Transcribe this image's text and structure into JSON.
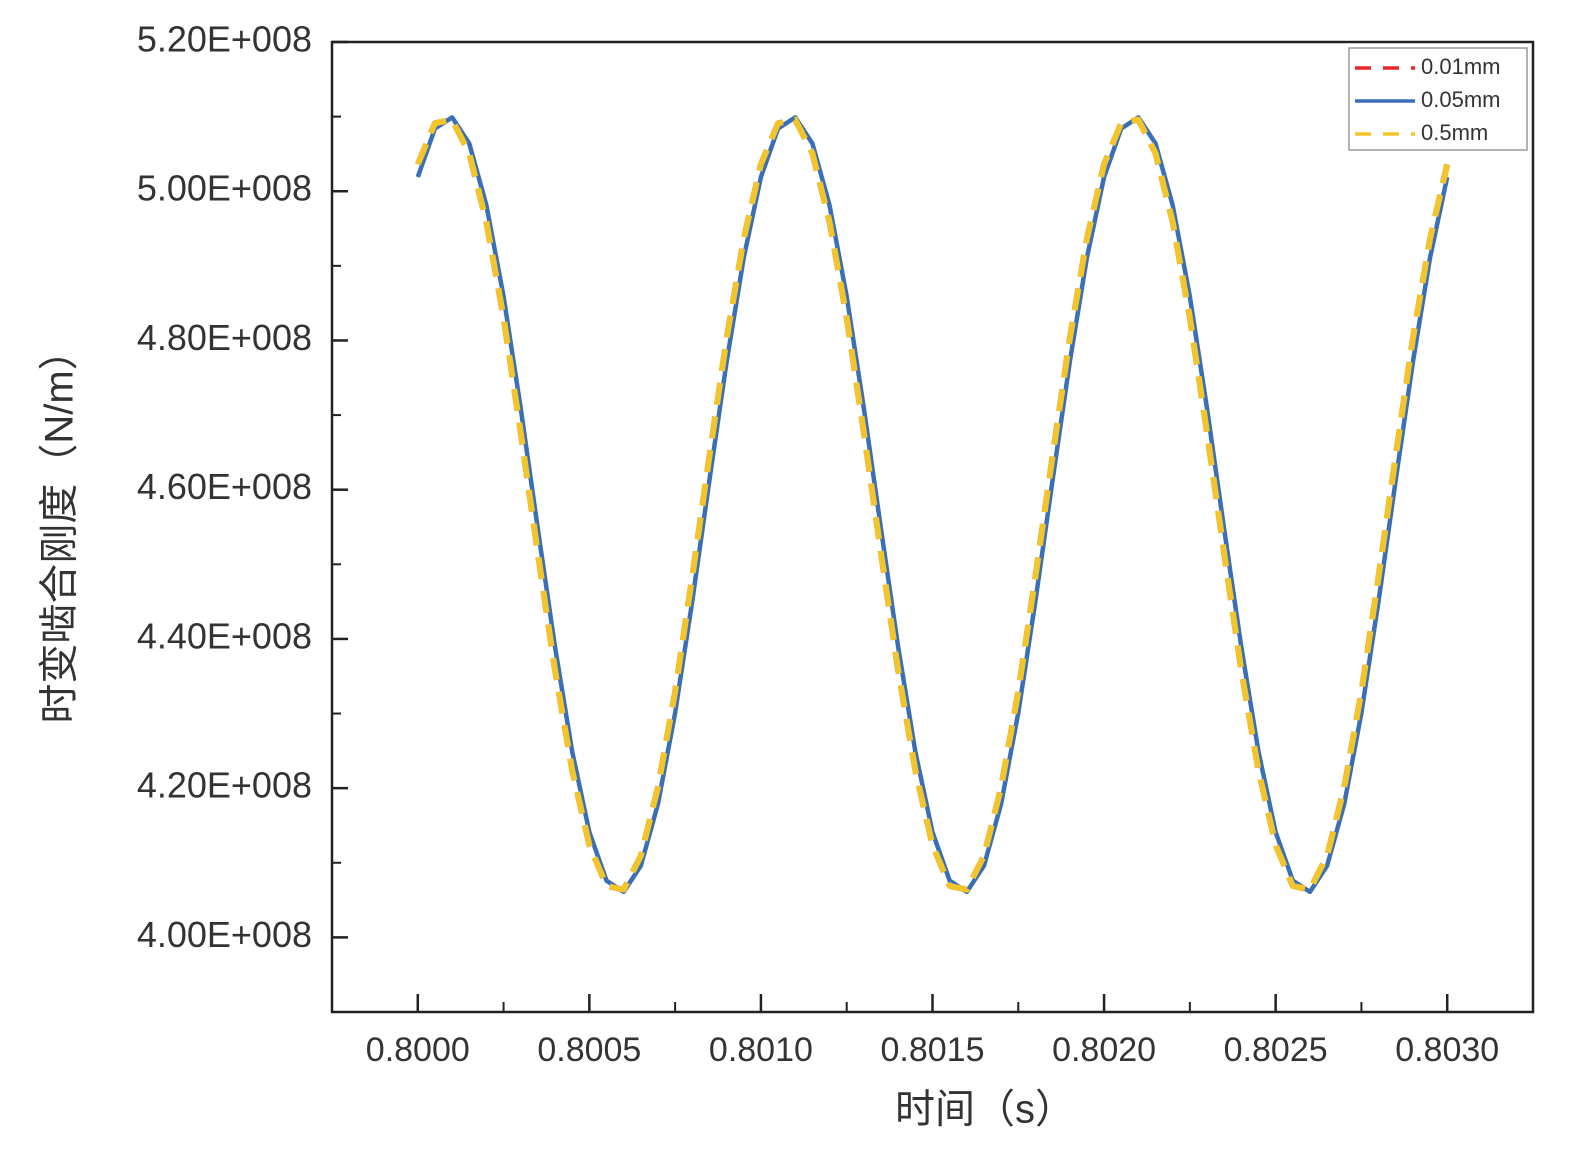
{
  "chart_data": {
    "type": "line",
    "x_label": "时间（s）",
    "y_label": "时变啮合刚度（N/m）",
    "x": [
      0.8,
      0.80005,
      0.8001,
      0.80015,
      0.8002,
      0.80025,
      0.8003,
      0.80035,
      0.8004,
      0.80045,
      0.8005,
      0.80055,
      0.8006,
      0.80065,
      0.8007,
      0.80075,
      0.8008,
      0.80085,
      0.8009,
      0.80095,
      0.801,
      0.80105,
      0.8011,
      0.80115,
      0.8012,
      0.80125,
      0.8013,
      0.80135,
      0.8014,
      0.80145,
      0.8015,
      0.80155,
      0.8016,
      0.80165,
      0.8017,
      0.80175,
      0.8018,
      0.80185,
      0.8019,
      0.80195,
      0.802,
      0.80205,
      0.8021,
      0.80215,
      0.8022,
      0.80225,
      0.8023,
      0.80235,
      0.8024,
      0.80245,
      0.8025,
      0.80255,
      0.8026,
      0.80265,
      0.8027,
      0.80275,
      0.8028,
      0.80285,
      0.8029,
      0.80295,
      0.803
    ],
    "series": [
      {
        "name": "0.01mm",
        "color": "#e8262a",
        "dash": true,
        "values": [
          503600000.0,
          509100000.0,
          509600000.0,
          505100000.0,
          495900000.0,
          483100000.0,
          467700000.0,
          451500000.0,
          435800000.0,
          422400000.0,
          412400000.0,
          406900000.0,
          406400000.0,
          410900000.0,
          420100000.0,
          432900000.0,
          448300000.0,
          464500000.0,
          480200000.0,
          493600000.0,
          503600000.0,
          509100000.0,
          509600000.0,
          505100000.0,
          495900000.0,
          483100000.0,
          467700000.0,
          451500000.0,
          435800000.0,
          422400000.0,
          412400000.0,
          406900000.0,
          406400000.0,
          410900000.0,
          420100000.0,
          432900000.0,
          448300000.0,
          464500000.0,
          480200000.0,
          493600000.0,
          503600000.0,
          509100000.0,
          509600000.0,
          505100000.0,
          495900000.0,
          483100000.0,
          467700000.0,
          451500000.0,
          435800000.0,
          422400000.0,
          412400000.0,
          406900000.0,
          406400000.0,
          410900000.0,
          420100000.0,
          432900000.0,
          448300000.0,
          464500000.0,
          480200000.0,
          493600000.0,
          503600000.0
        ]
      },
      {
        "name": "0.05mm",
        "color": "#3a6fb5",
        "dash": false,
        "values": [
          501900000.0,
          508400000.0,
          509900000.0,
          506400000.0,
          498100000.0,
          485900000.0,
          470900000.0,
          454700000.0,
          438900000.0,
          424900000.0,
          414100000.0,
          407600000.0,
          406100000.0,
          409600000.0,
          417900000.0,
          430100000.0,
          445100000.0,
          461300000.0,
          477100000.0,
          491100000.0,
          501900000.0,
          508400000.0,
          509900000.0,
          506400000.0,
          498100000.0,
          485900000.0,
          470900000.0,
          454700000.0,
          438900000.0,
          424900000.0,
          414100000.0,
          407600000.0,
          406100000.0,
          409600000.0,
          417900000.0,
          430100000.0,
          445100000.0,
          461300000.0,
          477100000.0,
          491100000.0,
          501900000.0,
          508400000.0,
          509900000.0,
          506400000.0,
          498100000.0,
          485900000.0,
          470900000.0,
          454700000.0,
          438900000.0,
          424900000.0,
          414100000.0,
          407600000.0,
          406100000.0,
          409600000.0,
          417900000.0,
          430100000.0,
          445100000.0,
          461300000.0,
          477100000.0,
          491100000.0,
          501900000.0
        ]
      },
      {
        "name": "0.5mm",
        "color": "#f2c52a",
        "dash": true,
        "values": [
          503600000.0,
          509100000.0,
          509600000.0,
          505100000.0,
          495900000.0,
          483100000.0,
          467700000.0,
          451500000.0,
          435800000.0,
          422400000.0,
          412400000.0,
          406900000.0,
          406400000.0,
          410900000.0,
          420100000.0,
          432900000.0,
          448300000.0,
          464500000.0,
          480200000.0,
          493600000.0,
          503600000.0,
          509100000.0,
          509600000.0,
          505100000.0,
          495900000.0,
          483100000.0,
          467700000.0,
          451500000.0,
          435800000.0,
          422400000.0,
          412400000.0,
          406900000.0,
          406400000.0,
          410900000.0,
          420100000.0,
          432900000.0,
          448300000.0,
          464500000.0,
          480200000.0,
          493600000.0,
          503600000.0,
          509100000.0,
          509600000.0,
          505100000.0,
          495900000.0,
          483100000.0,
          467700000.0,
          451500000.0,
          435800000.0,
          422400000.0,
          412400000.0,
          406900000.0,
          406400000.0,
          410900000.0,
          420100000.0,
          432900000.0,
          448300000.0,
          464500000.0,
          480200000.0,
          493600000.0,
          503600000.0
        ]
      }
    ],
    "xlim": [
      0.79975,
      0.80325
    ],
    "xticks": [
      {
        "value": 0.8,
        "label": "0.8000"
      },
      {
        "value": 0.8005,
        "label": "0.8005"
      },
      {
        "value": 0.801,
        "label": "0.8010"
      },
      {
        "value": 0.8015,
        "label": "0.8015"
      },
      {
        "value": 0.802,
        "label": "0.8020"
      },
      {
        "value": 0.8025,
        "label": "0.8025"
      },
      {
        "value": 0.803,
        "label": "0.8030"
      }
    ],
    "ylim": [
      390000000.0,
      520000000.0
    ],
    "yticks": [
      {
        "value": 400000000.0,
        "label": "4.00E+008"
      },
      {
        "value": 420000000.0,
        "label": "4.20E+008"
      },
      {
        "value": 440000000.0,
        "label": "4.40E+008"
      },
      {
        "value": 460000000.0,
        "label": "4.60E+008"
      },
      {
        "value": 480000000.0,
        "label": "4.80E+008"
      },
      {
        "value": 500000000.0,
        "label": "5.00E+008"
      },
      {
        "value": 520000000.0,
        "label": "5.20E+008"
      }
    ],
    "grid": false,
    "legend": "upper right"
  }
}
